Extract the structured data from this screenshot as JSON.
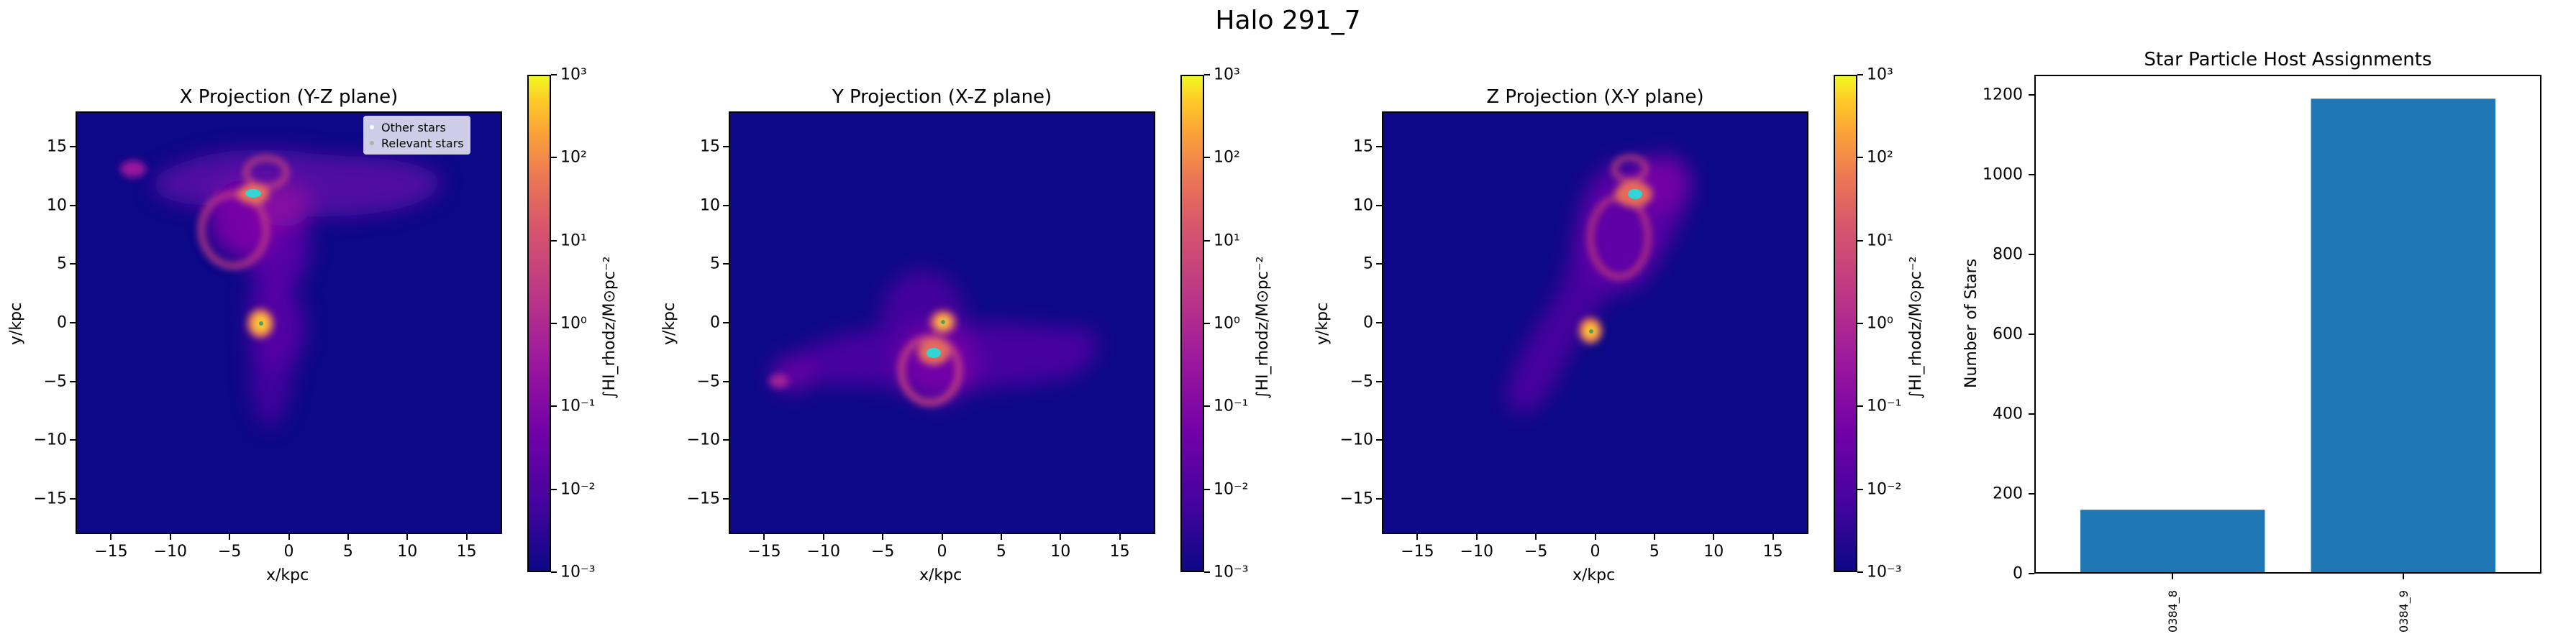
{
  "suptitle": "Halo 291_7",
  "chart_data": [
    {
      "type": "heatmap",
      "title": "X Projection (Y-Z plane)",
      "xlabel": "x/kpc",
      "ylabel": "y/kpc",
      "xlim": [
        -18,
        18
      ],
      "ylim": [
        -18,
        18
      ],
      "xticks": [
        "−15",
        "−10",
        "−5",
        "0",
        "5",
        "10",
        "15"
      ],
      "yticks": [
        "15",
        "10",
        "5",
        "0",
        "−5",
        "−10",
        "−15"
      ],
      "colorbar": {
        "scale": "log",
        "range": [
          0.001,
          1000
        ],
        "ticks": [
          "10³",
          "10²",
          "10¹",
          "10⁰",
          "10⁻¹",
          "10⁻²",
          "10⁻³"
        ],
        "label": "∫HI_rhodz/M⊙pc⁻²"
      },
      "legend": {
        "position": "top-right",
        "entries": [
          {
            "label": "Other stars",
            "color": "#ffffff"
          },
          {
            "label": "Relevant stars",
            "color": "#b0b0b0"
          }
        ]
      },
      "stars": [
        [
          -0.5,
          11
        ],
        [
          0,
          0
        ]
      ]
    },
    {
      "type": "heatmap",
      "title": "Y Projection (X-Z plane)",
      "xlabel": "x/kpc",
      "ylabel": "y/kpc",
      "xlim": [
        -18,
        18
      ],
      "ylim": [
        -18,
        18
      ],
      "xticks": [
        "−15",
        "−10",
        "−5",
        "0",
        "5",
        "10",
        "15"
      ],
      "yticks": [
        "15",
        "10",
        "5",
        "0",
        "−5",
        "−10",
        "−15"
      ],
      "colorbar": {
        "scale": "log",
        "range": [
          0.001,
          1000
        ],
        "ticks": [
          "10³",
          "10²",
          "10¹",
          "10⁰",
          "10⁻¹",
          "10⁻²",
          "10⁻³"
        ],
        "label": "∫HI_rhodz/M⊙pc⁻²"
      },
      "stars": [
        [
          -0.5,
          -3
        ],
        [
          0,
          0
        ]
      ]
    },
    {
      "type": "heatmap",
      "title": "Z Projection (X-Y plane)",
      "xlabel": "x/kpc",
      "ylabel": "y/kpc",
      "xlim": [
        -18,
        18
      ],
      "ylim": [
        -18,
        18
      ],
      "xticks": [
        "−15",
        "−10",
        "−5",
        "0",
        "5",
        "10",
        "15"
      ],
      "yticks": [
        "15",
        "10",
        "5",
        "0",
        "−5",
        "−10",
        "−15"
      ],
      "colorbar": {
        "scale": "log",
        "range": [
          0.001,
          1000
        ],
        "ticks": [
          "10³",
          "10²",
          "10¹",
          "10⁰",
          "10⁻¹",
          "10⁻²",
          "10⁻³"
        ],
        "label": "∫HI_rhodz/M⊙pc⁻²"
      },
      "stars": [
        [
          3,
          11
        ],
        [
          0,
          0
        ]
      ]
    },
    {
      "type": "bar",
      "title": "Star Particle Host Assignments",
      "xlabel": "",
      "ylabel": "Number of Stars",
      "categories": [
        "0384_8",
        "0384_9"
      ],
      "values": [
        160,
        1190
      ],
      "ylim": [
        0,
        1250
      ],
      "yticks": [
        "1200",
        "1000",
        "800",
        "600",
        "400",
        "200",
        "0"
      ],
      "color": "#1f77b4"
    }
  ]
}
